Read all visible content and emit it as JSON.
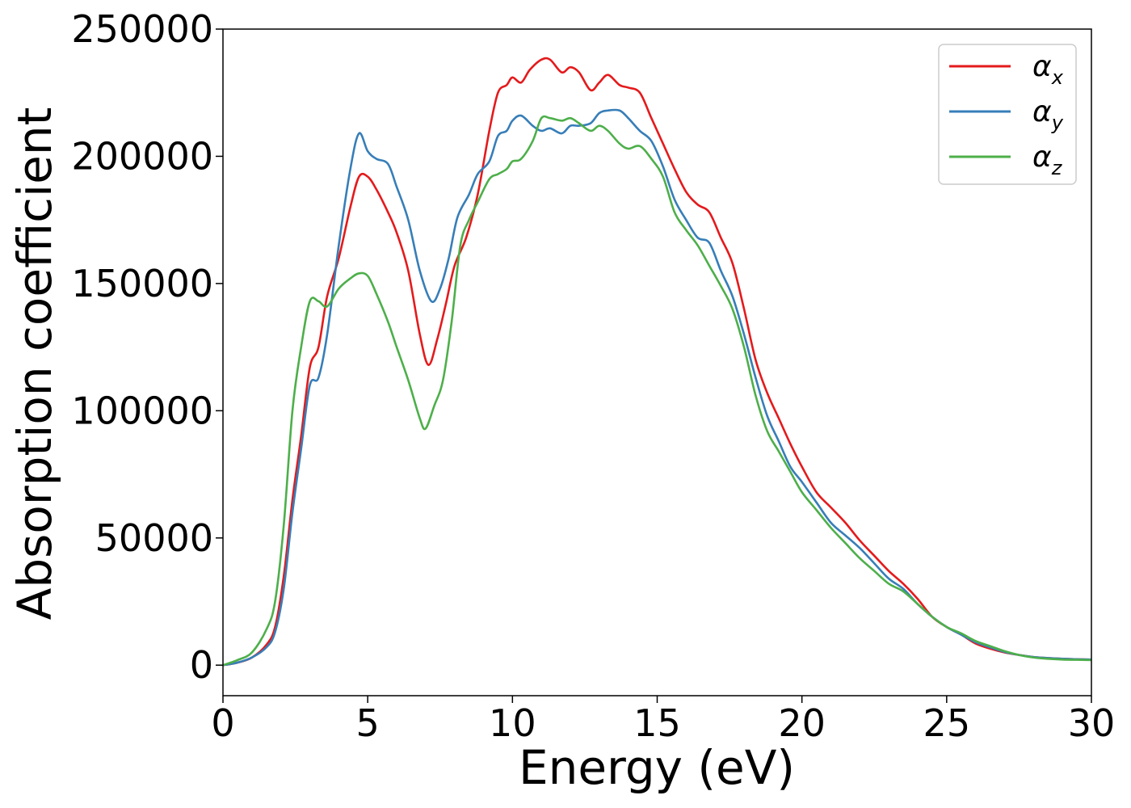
{
  "chart_data": {
    "type": "line",
    "title": "",
    "xlabel": "Energy (eV)",
    "ylabel": "Absorption coefficient",
    "xlim": [
      0,
      30
    ],
    "ylim": [
      -12000,
      250000
    ],
    "xticks": [
      0,
      5,
      10,
      15,
      20,
      25,
      30
    ],
    "yticks": [
      0,
      50000,
      100000,
      150000,
      200000,
      250000
    ],
    "grid": false,
    "legend_position": "top-right",
    "series": [
      {
        "name": "αx",
        "symbol": "α",
        "subscript": "x",
        "color": "#e41a1c",
        "points": [
          [
            0,
            0
          ],
          [
            0.5,
            1000
          ],
          [
            1.0,
            3000
          ],
          [
            1.5,
            8000
          ],
          [
            1.8,
            15000
          ],
          [
            2.1,
            35000
          ],
          [
            2.4,
            65000
          ],
          [
            2.7,
            90000
          ],
          [
            3.0,
            117000
          ],
          [
            3.3,
            125000
          ],
          [
            3.6,
            145000
          ],
          [
            4.0,
            160000
          ],
          [
            4.4,
            180000
          ],
          [
            4.7,
            192000
          ],
          [
            5.0,
            192000
          ],
          [
            5.3,
            187000
          ],
          [
            5.7,
            178000
          ],
          [
            6.0,
            170000
          ],
          [
            6.4,
            155000
          ],
          [
            6.8,
            130000
          ],
          [
            7.1,
            118000
          ],
          [
            7.4,
            128000
          ],
          [
            7.7,
            142000
          ],
          [
            8.0,
            157000
          ],
          [
            8.4,
            168000
          ],
          [
            8.8,
            185000
          ],
          [
            9.2,
            210000
          ],
          [
            9.5,
            225000
          ],
          [
            9.8,
            228000
          ],
          [
            10.0,
            231000
          ],
          [
            10.3,
            229000
          ],
          [
            10.6,
            234000
          ],
          [
            11.0,
            238000
          ],
          [
            11.3,
            238000
          ],
          [
            11.7,
            233000
          ],
          [
            12.0,
            235000
          ],
          [
            12.3,
            233000
          ],
          [
            12.7,
            226000
          ],
          [
            13.0,
            229000
          ],
          [
            13.3,
            232000
          ],
          [
            13.7,
            228000
          ],
          [
            14.0,
            227000
          ],
          [
            14.4,
            225000
          ],
          [
            14.8,
            215000
          ],
          [
            15.2,
            205000
          ],
          [
            15.6,
            195000
          ],
          [
            16.0,
            186000
          ],
          [
            16.4,
            181000
          ],
          [
            16.8,
            178000
          ],
          [
            17.2,
            168000
          ],
          [
            17.6,
            158000
          ],
          [
            18.0,
            140000
          ],
          [
            18.4,
            120000
          ],
          [
            18.8,
            107000
          ],
          [
            19.2,
            97000
          ],
          [
            19.6,
            87000
          ],
          [
            20.0,
            78000
          ],
          [
            20.5,
            68000
          ],
          [
            21.0,
            62000
          ],
          [
            21.5,
            56000
          ],
          [
            22.0,
            49000
          ],
          [
            22.5,
            43000
          ],
          [
            23.0,
            37000
          ],
          [
            23.5,
            32000
          ],
          [
            24.0,
            26000
          ],
          [
            24.5,
            19000
          ],
          [
            25.0,
            15000
          ],
          [
            25.5,
            12000
          ],
          [
            26.0,
            8500
          ],
          [
            26.5,
            6500
          ],
          [
            27.0,
            5000
          ],
          [
            27.5,
            4000
          ],
          [
            28.0,
            3200
          ],
          [
            28.5,
            2800
          ],
          [
            29.0,
            2500
          ],
          [
            29.5,
            2300
          ],
          [
            30.0,
            2200
          ]
        ]
      },
      {
        "name": "αy",
        "symbol": "α",
        "subscript": "y",
        "color": "#377eb8",
        "points": [
          [
            0,
            0
          ],
          [
            0.5,
            1000
          ],
          [
            1.0,
            3000
          ],
          [
            1.5,
            7000
          ],
          [
            1.8,
            13000
          ],
          [
            2.1,
            30000
          ],
          [
            2.4,
            60000
          ],
          [
            2.7,
            85000
          ],
          [
            3.0,
            110000
          ],
          [
            3.3,
            113000
          ],
          [
            3.6,
            130000
          ],
          [
            4.0,
            165000
          ],
          [
            4.4,
            195000
          ],
          [
            4.7,
            209000
          ],
          [
            5.0,
            202000
          ],
          [
            5.3,
            199000
          ],
          [
            5.7,
            197000
          ],
          [
            6.0,
            188000
          ],
          [
            6.4,
            175000
          ],
          [
            6.8,
            155000
          ],
          [
            7.2,
            143000
          ],
          [
            7.5,
            148000
          ],
          [
            7.8,
            160000
          ],
          [
            8.1,
            176000
          ],
          [
            8.5,
            185000
          ],
          [
            8.8,
            193000
          ],
          [
            9.2,
            198000
          ],
          [
            9.5,
            208000
          ],
          [
            9.8,
            210000
          ],
          [
            10.0,
            214000
          ],
          [
            10.3,
            216000
          ],
          [
            10.7,
            212000
          ],
          [
            11.0,
            210000
          ],
          [
            11.3,
            211000
          ],
          [
            11.7,
            209000
          ],
          [
            12.0,
            212000
          ],
          [
            12.3,
            212000
          ],
          [
            12.7,
            213000
          ],
          [
            13.0,
            217000
          ],
          [
            13.3,
            218000
          ],
          [
            13.7,
            218000
          ],
          [
            14.0,
            215000
          ],
          [
            14.4,
            210000
          ],
          [
            14.8,
            206000
          ],
          [
            15.2,
            196000
          ],
          [
            15.6,
            183000
          ],
          [
            16.0,
            175000
          ],
          [
            16.4,
            168000
          ],
          [
            16.8,
            166000
          ],
          [
            17.2,
            155000
          ],
          [
            17.6,
            145000
          ],
          [
            18.0,
            130000
          ],
          [
            18.4,
            113000
          ],
          [
            18.8,
            98000
          ],
          [
            19.2,
            88000
          ],
          [
            19.6,
            78000
          ],
          [
            20.0,
            72000
          ],
          [
            20.5,
            64000
          ],
          [
            21.0,
            56000
          ],
          [
            21.5,
            51000
          ],
          [
            22.0,
            46000
          ],
          [
            22.5,
            40000
          ],
          [
            23.0,
            34000
          ],
          [
            23.5,
            30000
          ],
          [
            24.0,
            24000
          ],
          [
            24.5,
            19000
          ],
          [
            25.0,
            15000
          ],
          [
            25.5,
            12000
          ],
          [
            26.0,
            9000
          ],
          [
            26.5,
            7000
          ],
          [
            27.0,
            5200
          ],
          [
            27.5,
            4000
          ],
          [
            28.0,
            3200
          ],
          [
            28.5,
            2800
          ],
          [
            29.0,
            2500
          ],
          [
            29.5,
            2300
          ],
          [
            30.0,
            2200
          ]
        ]
      },
      {
        "name": "αz",
        "symbol": "α",
        "subscript": "z",
        "color": "#4daf4a",
        "points": [
          [
            0,
            0
          ],
          [
            0.5,
            2000
          ],
          [
            1.0,
            5000
          ],
          [
            1.5,
            14000
          ],
          [
            1.8,
            25000
          ],
          [
            2.1,
            55000
          ],
          [
            2.4,
            100000
          ],
          [
            2.7,
            125000
          ],
          [
            3.0,
            143000
          ],
          [
            3.3,
            143000
          ],
          [
            3.6,
            141000
          ],
          [
            4.0,
            148000
          ],
          [
            4.4,
            152000
          ],
          [
            4.7,
            154000
          ],
          [
            5.0,
            153000
          ],
          [
            5.3,
            146000
          ],
          [
            5.7,
            135000
          ],
          [
            6.0,
            125000
          ],
          [
            6.4,
            112000
          ],
          [
            6.8,
            97000
          ],
          [
            7.0,
            93000
          ],
          [
            7.3,
            102000
          ],
          [
            7.6,
            112000
          ],
          [
            7.9,
            135000
          ],
          [
            8.2,
            165000
          ],
          [
            8.5,
            175000
          ],
          [
            8.8,
            182000
          ],
          [
            9.2,
            191000
          ],
          [
            9.5,
            193000
          ],
          [
            9.8,
            195000
          ],
          [
            10.0,
            198000
          ],
          [
            10.3,
            199000
          ],
          [
            10.7,
            206000
          ],
          [
            11.0,
            215000
          ],
          [
            11.3,
            215000
          ],
          [
            11.7,
            214000
          ],
          [
            12.0,
            215000
          ],
          [
            12.3,
            213000
          ],
          [
            12.7,
            210000
          ],
          [
            13.0,
            212000
          ],
          [
            13.3,
            210000
          ],
          [
            13.7,
            205000
          ],
          [
            14.0,
            203000
          ],
          [
            14.4,
            204000
          ],
          [
            14.8,
            199000
          ],
          [
            15.2,
            192000
          ],
          [
            15.6,
            178000
          ],
          [
            16.0,
            171000
          ],
          [
            16.4,
            165000
          ],
          [
            16.8,
            157000
          ],
          [
            17.2,
            149000
          ],
          [
            17.6,
            140000
          ],
          [
            18.0,
            125000
          ],
          [
            18.4,
            106000
          ],
          [
            18.8,
            92000
          ],
          [
            19.2,
            84000
          ],
          [
            19.6,
            76000
          ],
          [
            20.0,
            68000
          ],
          [
            20.5,
            61000
          ],
          [
            21.0,
            54000
          ],
          [
            21.5,
            48000
          ],
          [
            22.0,
            42000
          ],
          [
            22.5,
            37000
          ],
          [
            23.0,
            32000
          ],
          [
            23.5,
            29000
          ],
          [
            24.0,
            24000
          ],
          [
            24.5,
            19000
          ],
          [
            25.0,
            15000
          ],
          [
            25.5,
            12500
          ],
          [
            26.0,
            9500
          ],
          [
            26.5,
            7500
          ],
          [
            27.0,
            5500
          ],
          [
            27.5,
            4000
          ],
          [
            28.0,
            3000
          ],
          [
            28.5,
            2500
          ],
          [
            29.0,
            2200
          ],
          [
            29.5,
            2100
          ],
          [
            30.0,
            2000
          ]
        ]
      }
    ]
  }
}
